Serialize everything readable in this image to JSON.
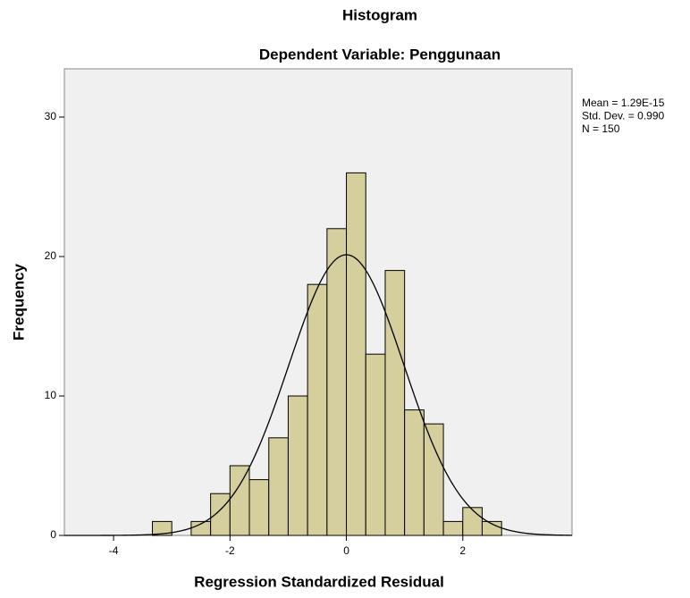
{
  "chart_data": {
    "type": "histogram",
    "title": "Histogram",
    "subtitle": "Dependent Variable: Penggunaan",
    "x_label": "Regression Standardized Residual",
    "y_label": "Frequency",
    "bins": [
      -3.333,
      -3,
      -2.667,
      -2.333,
      -2,
      -1.667,
      -1.333,
      -1,
      -0.667,
      -0.333,
      0,
      0.333,
      0.667,
      1,
      1.333,
      1.667,
      2,
      2.333,
      2.667
    ],
    "counts": [
      1,
      0,
      1,
      3,
      5,
      4,
      7,
      10,
      18,
      22,
      26,
      13,
      19,
      9,
      8,
      1,
      2,
      1
    ],
    "color": "#d4cf9d",
    "stats": [
      {
        "value": 1.29e-15,
        "label": "Mean = 1.29E-15"
      },
      {
        "value": 0.99,
        "label": "Std. Dev. = 0.990"
      },
      {
        "value": 150,
        "label": "N = 150"
      }
    ],
    "xlim": [
      -4.846,
      3.877
    ],
    "ylim": [
      0,
      33.46
    ],
    "xticks": [
      -4,
      -2,
      0,
      2
    ],
    "yticks": [
      0,
      10,
      20,
      30
    ]
  }
}
